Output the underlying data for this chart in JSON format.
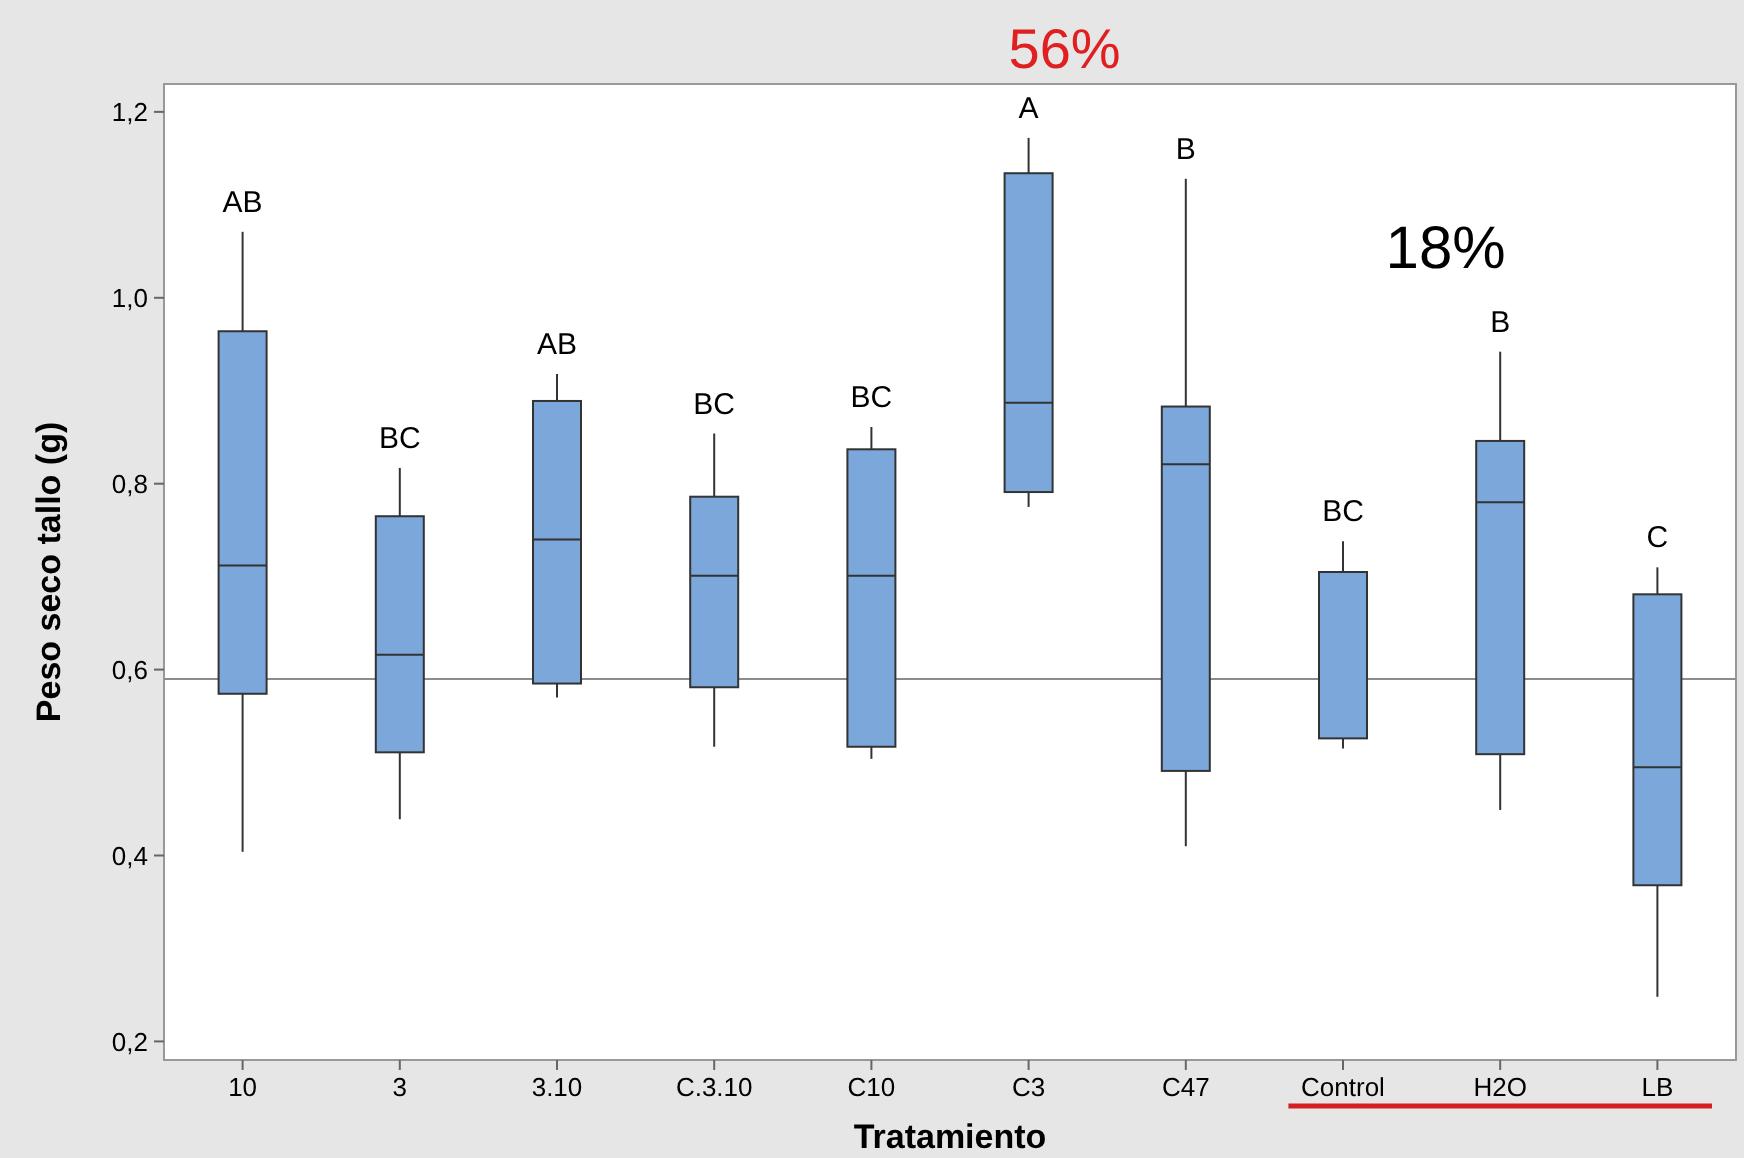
{
  "chart_data": {
    "type": "box",
    "title": "56%",
    "xlabel": "Tratamiento",
    "ylabel": "Peso seco tallo (g)",
    "categories": [
      "10",
      "3",
      "3.10",
      "C.3.10",
      "C10",
      "C3",
      "C47",
      "Control",
      "H2O",
      "LB"
    ],
    "color": "#7ba7db",
    "boxes": [
      {
        "low": 0.404,
        "q1": 0.574,
        "median": 0.712,
        "q3": 0.964,
        "high": 1.071
      },
      {
        "low": 0.439,
        "q1": 0.511,
        "median": 0.616,
        "q3": 0.765,
        "high": 0.817
      },
      {
        "low": 0.57,
        "q1": 0.585,
        "median": 0.74,
        "q3": 0.889,
        "high": 0.918
      },
      {
        "low": 0.517,
        "q1": 0.581,
        "median": 0.701,
        "q3": 0.786,
        "high": 0.854
      },
      {
        "low": 0.504,
        "q1": 0.517,
        "median": 0.701,
        "q3": 0.837,
        "high": 0.861
      },
      {
        "low": 0.775,
        "q1": 0.791,
        "median": 0.887,
        "q3": 1.134,
        "high": 1.172
      },
      {
        "low": 0.41,
        "q1": 0.491,
        "median": 0.821,
        "q3": 0.883,
        "high": 1.128
      },
      {
        "low": 0.515,
        "q1": 0.526,
        "median": 0.705,
        "q3": 0.705,
        "high": 0.738
      },
      {
        "low": 0.449,
        "q1": 0.509,
        "median": 0.78,
        "q3": 0.846,
        "high": 0.942
      },
      {
        "low": 0.248,
        "q1": 0.368,
        "median": 0.495,
        "q3": 0.681,
        "high": 0.71
      }
    ],
    "ylim": [
      0.18,
      1.23
    ],
    "yticks": [
      {
        "value": 0.2,
        "label": "0,2"
      },
      {
        "value": 0.4,
        "label": "0,4"
      },
      {
        "value": 0.6,
        "label": "0,6"
      },
      {
        "value": 0.8,
        "label": "0,8"
      },
      {
        "value": 1.0,
        "label": "1,0"
      },
      {
        "value": 1.2,
        "label": "1,2"
      }
    ],
    "ref_lines": [
      {
        "axis": "y",
        "value": 0.59,
        "color": "#8c8c8c"
      }
    ],
    "annotations": [
      "AB",
      "BC",
      "AB",
      "BC",
      "BC",
      "A",
      "B",
      "BC",
      "B",
      "C",
      "18%"
    ],
    "grid": false
  }
}
